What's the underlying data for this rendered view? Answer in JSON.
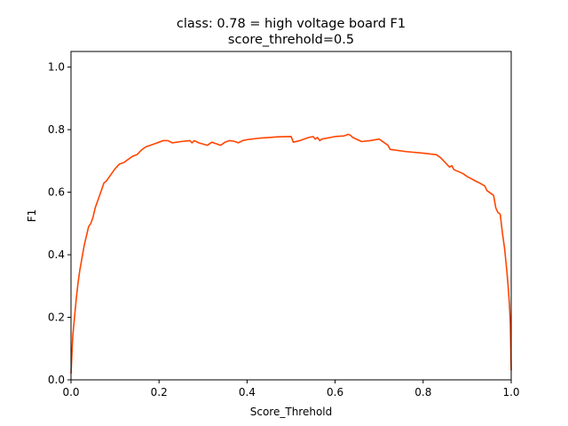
{
  "chart_data": {
    "type": "line",
    "title": [
      "class: 0.78 = high voltage board F1",
      "score_threhold=0.5"
    ],
    "xlabel": "Score_Threhold",
    "ylabel": "F1",
    "xlim": [
      0,
      1
    ],
    "ylim": [
      0,
      1.05
    ],
    "xticks": [
      0.0,
      0.2,
      0.4,
      0.6,
      0.8,
      1.0
    ],
    "yticks": [
      0.0,
      0.2,
      0.4,
      0.6,
      0.8,
      1.0
    ],
    "grid": false,
    "line_color": "#ff4500",
    "series": [
      {
        "x": [
          0.0,
          0.004,
          0.008,
          0.012,
          0.016,
          0.02,
          0.025,
          0.03,
          0.035,
          0.04,
          0.045,
          0.05,
          0.055,
          0.06,
          0.065,
          0.07,
          0.075,
          0.08,
          0.085,
          0.09,
          0.095,
          0.1,
          0.11,
          0.12,
          0.13,
          0.14,
          0.15,
          0.16,
          0.17,
          0.18,
          0.19,
          0.2,
          0.21,
          0.22,
          0.23,
          0.25,
          0.27,
          0.275,
          0.28,
          0.29,
          0.31,
          0.32,
          0.33,
          0.34,
          0.35,
          0.36,
          0.37,
          0.38,
          0.39,
          0.4,
          0.41,
          0.43,
          0.45,
          0.47,
          0.5,
          0.505,
          0.52,
          0.54,
          0.55,
          0.555,
          0.56,
          0.565,
          0.57,
          0.6,
          0.62,
          0.63,
          0.635,
          0.64,
          0.66,
          0.68,
          0.7,
          0.71,
          0.72,
          0.725,
          0.76,
          0.8,
          0.83,
          0.84,
          0.85,
          0.86,
          0.865,
          0.87,
          0.89,
          0.9,
          0.92,
          0.93,
          0.94,
          0.945,
          0.95,
          0.955,
          0.96,
          0.965,
          0.97,
          0.975,
          0.98,
          0.985,
          0.99,
          0.993,
          0.996,
          0.998,
          1.0
        ],
        "y": [
          0.02,
          0.14,
          0.2,
          0.26,
          0.31,
          0.35,
          0.39,
          0.43,
          0.46,
          0.49,
          0.5,
          0.52,
          0.55,
          0.57,
          0.59,
          0.61,
          0.63,
          0.635,
          0.645,
          0.655,
          0.665,
          0.675,
          0.69,
          0.695,
          0.705,
          0.715,
          0.72,
          0.735,
          0.745,
          0.75,
          0.755,
          0.76,
          0.765,
          0.765,
          0.758,
          0.762,
          0.765,
          0.758,
          0.765,
          0.758,
          0.75,
          0.76,
          0.755,
          0.75,
          0.76,
          0.765,
          0.763,
          0.758,
          0.765,
          0.768,
          0.77,
          0.773,
          0.775,
          0.777,
          0.778,
          0.76,
          0.765,
          0.775,
          0.778,
          0.77,
          0.775,
          0.765,
          0.77,
          0.778,
          0.78,
          0.785,
          0.782,
          0.775,
          0.762,
          0.765,
          0.77,
          0.76,
          0.75,
          0.737,
          0.73,
          0.725,
          0.72,
          0.71,
          0.695,
          0.68,
          0.685,
          0.672,
          0.66,
          0.65,
          0.635,
          0.628,
          0.62,
          0.605,
          0.6,
          0.595,
          0.59,
          0.55,
          0.535,
          0.53,
          0.47,
          0.42,
          0.35,
          0.3,
          0.24,
          0.18,
          0.03
        ]
      }
    ]
  }
}
